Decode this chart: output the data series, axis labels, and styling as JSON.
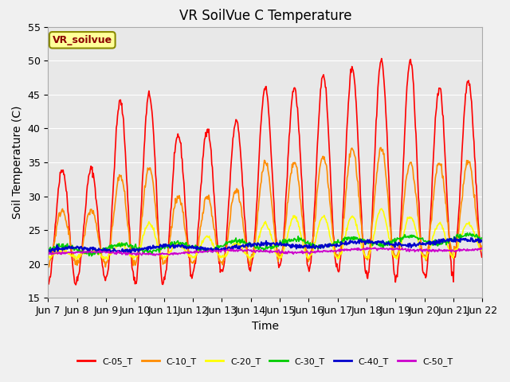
{
  "title": "VR SoilVue C Temperature",
  "xlabel": "Time",
  "ylabel": "Soil Temperature (C)",
  "ylim": [
    15,
    55
  ],
  "background_color": "#f0f0f0",
  "plot_bg_color": "#e8e8e8",
  "x_tick_labels": [
    "Jun 7",
    "Jun 8",
    "Jun 9",
    "Jun 10",
    "Jun 11",
    "Jun 12",
    "Jun 13",
    "Jun 14",
    "Jun 15",
    "Jun 16",
    "Jun 17",
    "Jun 18",
    "Jun 19",
    "Jun 20",
    "Jun 21",
    "Jun 22"
  ],
  "legend_label": "VR_soilvue",
  "series_labels": [
    "C-05_T",
    "C-10_T",
    "C-20_T",
    "C-30_T",
    "C-40_T",
    "C-50_T"
  ],
  "series_colors": [
    "#ff0000",
    "#ff8c00",
    "#ffff00",
    "#00cc00",
    "#0000cc",
    "#cc00cc"
  ],
  "series_linewidths": [
    1.2,
    1.2,
    1.2,
    1.2,
    1.5,
    1.2
  ],
  "n_days": 15,
  "pts_per_day": 48,
  "c05_peaks": [
    34,
    34,
    44,
    45,
    39,
    40,
    41,
    46,
    46,
    48,
    49,
    50,
    50,
    46,
    47
  ],
  "c05_troughs": [
    17,
    18,
    18,
    17,
    18,
    19,
    19,
    20,
    20,
    19,
    19,
    18,
    18,
    18,
    21
  ],
  "c10_peaks": [
    28,
    28,
    33,
    34,
    30,
    30,
    31,
    35,
    35,
    36,
    37,
    37,
    35,
    35,
    35
  ],
  "c10_troughs": [
    20,
    20,
    20,
    20,
    20,
    20,
    20,
    21,
    21,
    21,
    21,
    21,
    21,
    21,
    22
  ],
  "c20_peaks": [
    22,
    22,
    23,
    26,
    23,
    24,
    23,
    26,
    27,
    27,
    27,
    28,
    27,
    26,
    26
  ],
  "c20_troughs": [
    21,
    21,
    21,
    21,
    21,
    21,
    21,
    21,
    21,
    21,
    21,
    21,
    21,
    21,
    22
  ]
}
